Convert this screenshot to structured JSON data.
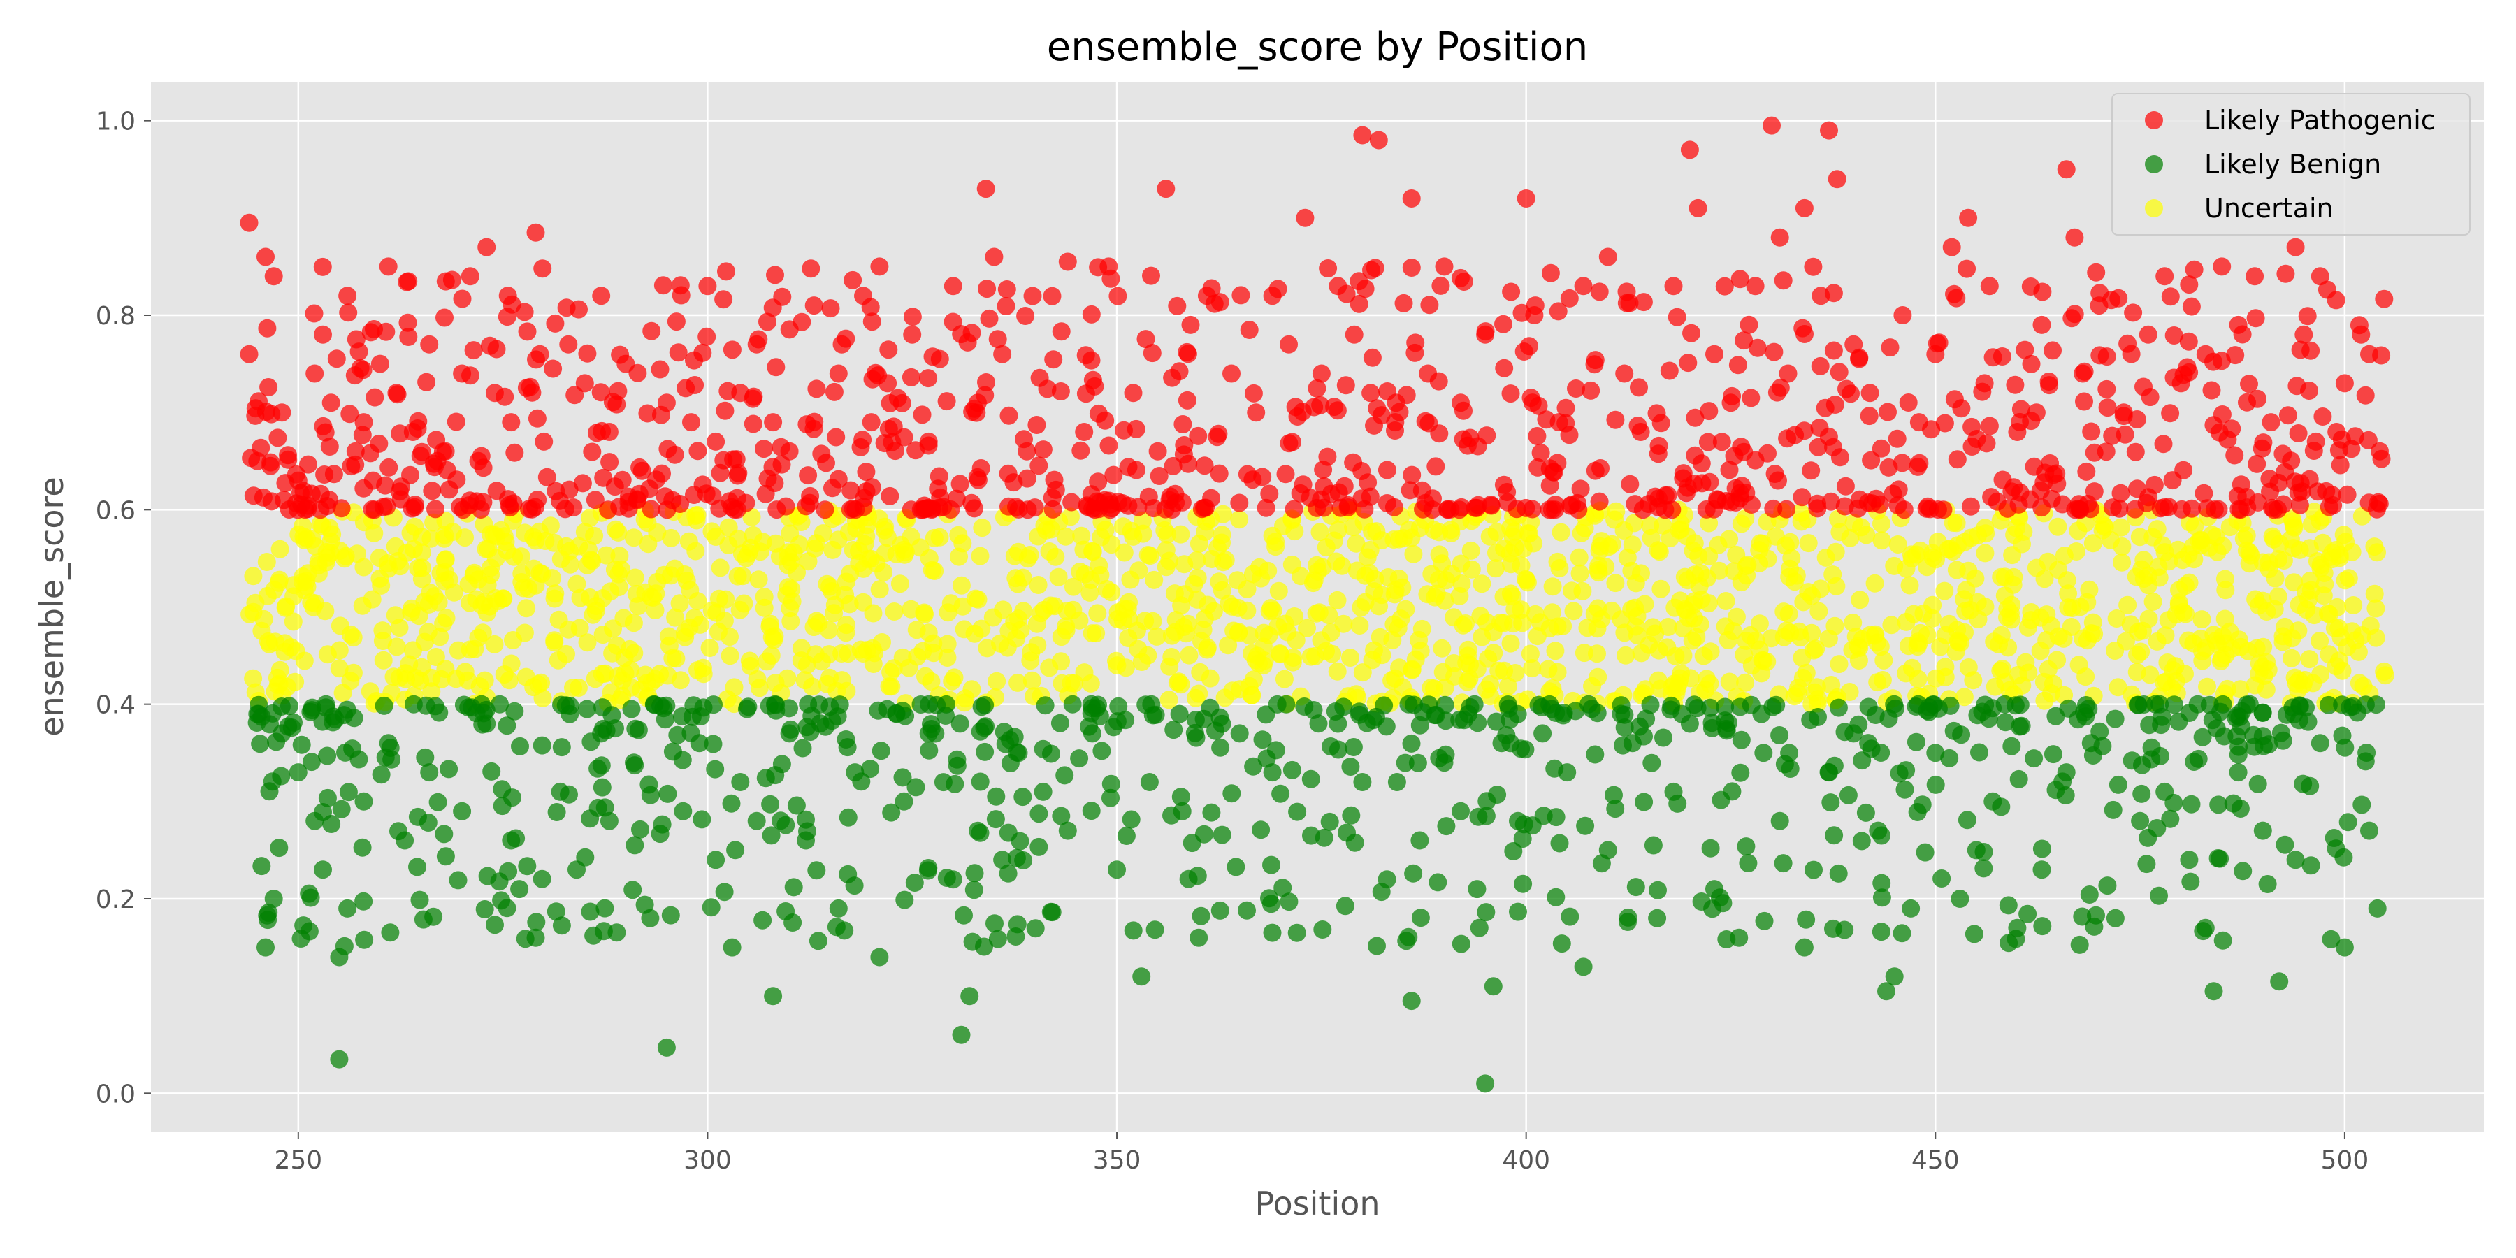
{
  "chart_data": {
    "type": "scatter",
    "title": "ensemble_score by Position",
    "xlabel": "Position",
    "ylabel": "ensemble_score",
    "xlim": [
      232,
      517
    ],
    "ylim": [
      -0.04,
      1.04
    ],
    "x_ticks": [
      250,
      300,
      350,
      400,
      450,
      500
    ],
    "y_ticks": [
      0.0,
      0.2,
      0.4,
      0.6,
      0.8,
      1.0
    ],
    "x_tick_labels": [
      "250",
      "300",
      "350",
      "400",
      "450",
      "500"
    ],
    "y_tick_labels": [
      "0.0",
      "0.2",
      "0.4",
      "0.6",
      "0.8",
      "1.0"
    ],
    "grid": true,
    "legend_position": "top-right",
    "background_color": "#e5e5e5",
    "series": [
      {
        "name": "Likely Pathogenic",
        "color": "#ff0000",
        "y_range": [
          0.6,
          1.0
        ],
        "x": [
          244,
          244,
          245,
          246,
          247,
          248,
          250,
          252,
          253,
          254,
          256,
          257,
          258,
          260,
          261,
          262,
          264,
          266,
          268,
          270,
          271,
          272,
          273,
          274,
          276,
          279,
          280,
          283,
          285,
          287,
          288,
          290,
          292,
          295,
          298,
          300,
          301,
          304,
          306,
          308,
          310,
          313,
          316,
          319,
          320,
          321,
          322,
          325,
          327,
          330,
          333,
          334,
          335,
          336,
          339,
          344,
          346,
          349,
          352,
          355,
          356,
          359,
          361,
          364,
          367,
          369,
          371,
          373,
          375,
          377,
          379,
          380,
          381,
          382,
          384,
          386,
          388,
          390,
          392,
          395,
          400,
          401,
          404,
          407,
          410,
          412,
          414,
          418,
          420,
          421,
          423,
          425,
          428,
          430,
          431,
          432,
          434,
          436,
          437,
          438,
          440,
          442,
          446,
          448,
          450,
          452,
          454,
          456,
          460,
          463,
          466,
          467,
          468,
          470,
          473,
          476,
          478,
          480,
          483,
          485,
          487,
          489,
          491,
          494,
          495,
          497,
          499,
          500,
          502,
          503
        ],
        "y": [
          0.895,
          0.76,
          0.65,
          0.86,
          0.84,
          0.7,
          0.63,
          0.74,
          0.78,
          0.71,
          0.82,
          0.66,
          0.69,
          0.75,
          0.85,
          0.72,
          0.68,
          0.77,
          0.66,
          0.74,
          0.84,
          0.65,
          0.87,
          0.72,
          0.69,
          0.885,
          0.67,
          0.77,
          0.73,
          0.82,
          0.68,
          0.75,
          0.64,
          0.71,
          0.69,
          0.83,
          0.67,
          0.72,
          0.77,
          0.69,
          0.66,
          0.81,
          0.74,
          0.82,
          0.69,
          0.85,
          0.73,
          0.78,
          0.67,
          0.83,
          0.71,
          0.93,
          0.86,
          0.76,
          0.66,
          0.855,
          0.68,
          0.85,
          0.72,
          0.66,
          0.93,
          0.79,
          0.82,
          0.74,
          0.7,
          0.82,
          0.77,
          0.9,
          0.74,
          0.83,
          0.78,
          0.985,
          0.72,
          0.98,
          0.69,
          0.92,
          0.74,
          0.85,
          0.71,
          0.78,
          0.92,
          0.8,
          0.69,
          0.83,
          0.86,
          0.74,
          0.68,
          0.83,
          0.97,
          0.91,
          0.76,
          0.71,
          0.83,
          0.995,
          0.88,
          0.74,
          0.91,
          0.82,
          0.99,
          0.94,
          0.77,
          0.72,
          0.8,
          0.69,
          0.76,
          0.87,
          0.9,
          0.73,
          0.68,
          0.79,
          0.95,
          0.88,
          0.74,
          0.81,
          0.7,
          0.78,
          0.84,
          0.73,
          0.76,
          0.85,
          0.79,
          0.84,
          0.69,
          0.87,
          0.78,
          0.84,
          0.68,
          0.73,
          0.78,
          0.76
        ]
      },
      {
        "name": "Likely Benign",
        "color": "#008000",
        "y_range": [
          0.0,
          0.4
        ],
        "x": [
          245,
          246,
          247,
          248,
          250,
          252,
          253,
          255,
          255,
          256,
          258,
          261,
          263,
          266,
          270,
          273,
          276,
          277,
          279,
          282,
          284,
          287,
          288,
          291,
          293,
          295,
          297,
          299,
          301,
          303,
          304,
          306,
          308,
          310,
          312,
          316,
          318,
          321,
          324,
          327,
          330,
          331,
          332,
          336,
          338,
          341,
          344,
          347,
          350,
          353,
          354,
          358,
          360,
          365,
          369,
          372,
          377,
          380,
          383,
          386,
          387,
          390,
          392,
          394,
          395,
          396,
          397,
          399,
          402,
          405,
          407,
          410,
          413,
          416,
          418,
          420,
          423,
          426,
          429,
          431,
          434,
          437,
          440,
          443,
          444,
          445,
          447,
          450,
          453,
          455,
          457,
          460,
          463,
          466,
          469,
          472,
          475,
          478,
          481,
          483,
          484,
          487,
          490,
          492,
          494,
          497,
          500,
          503,
          504
        ],
        "y": [
          0.39,
          0.15,
          0.2,
          0.37,
          0.33,
          0.28,
          0.23,
          0.14,
          0.035,
          0.19,
          0.3,
          0.36,
          0.26,
          0.33,
          0.29,
          0.38,
          0.26,
          0.21,
          0.16,
          0.31,
          0.23,
          0.37,
          0.28,
          0.34,
          0.18,
          0.047,
          0.29,
          0.36,
          0.24,
          0.15,
          0.32,
          0.28,
          0.1,
          0.37,
          0.26,
          0.19,
          0.33,
          0.14,
          0.3,
          0.37,
          0.22,
          0.06,
          0.1,
          0.24,
          0.35,
          0.31,
          0.27,
          0.37,
          0.23,
          0.12,
          0.32,
          0.29,
          0.16,
          0.37,
          0.33,
          0.165,
          0.38,
          0.32,
          0.22,
          0.095,
          0.26,
          0.34,
          0.29,
          0.21,
          0.01,
          0.11,
          0.36,
          0.28,
          0.37,
          0.33,
          0.13,
          0.25,
          0.36,
          0.18,
          0.31,
          0.38,
          0.21,
          0.16,
          0.35,
          0.28,
          0.15,
          0.33,
          0.37,
          0.27,
          0.105,
          0.12,
          0.19,
          0.35,
          0.2,
          0.25,
          0.3,
          0.17,
          0.23,
          0.33,
          0.36,
          0.18,
          0.28,
          0.31,
          0.24,
          0.17,
          0.105,
          0.33,
          0.27,
          0.115,
          0.24,
          0.36,
          0.15,
          0.27,
          0.19
        ]
      },
      {
        "name": "Uncertain",
        "color": "#ffff00",
        "y_range": [
          0.4,
          0.6
        ],
        "x_range": [
          244,
          505
        ],
        "count": 1600
      }
    ]
  }
}
